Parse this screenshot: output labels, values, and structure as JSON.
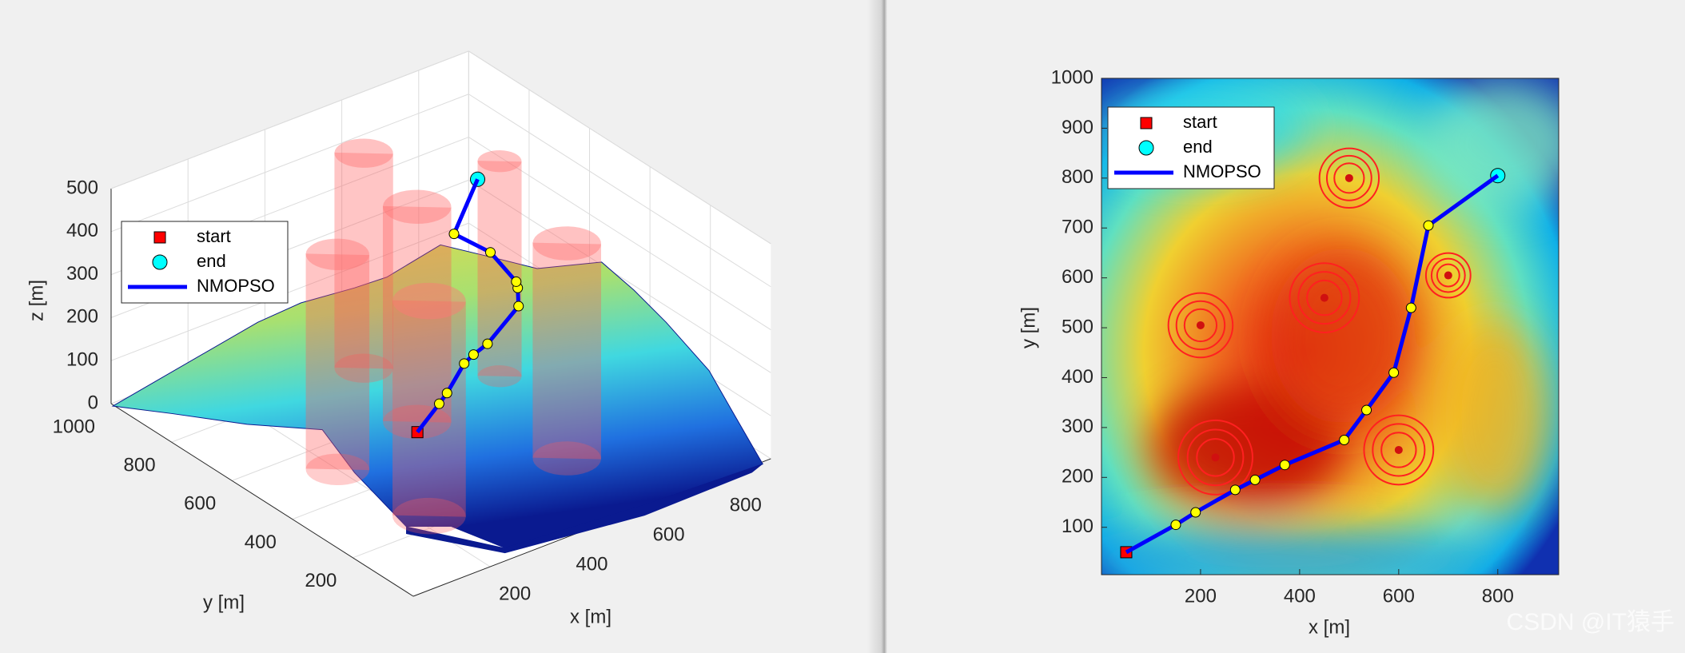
{
  "watermark": "CSDN @IT猿手",
  "chart_data": [
    {
      "type": "line3d",
      "xlabel": "x [m]",
      "ylabel": "y [m]",
      "zlabel": "z [m]",
      "xlim": [
        0,
        930
      ],
      "ylim": [
        0,
        1000
      ],
      "zlim": [
        0,
        500
      ],
      "xticks": [
        200,
        400,
        600,
        800
      ],
      "yticks": [
        200,
        400,
        600,
        800,
        1000
      ],
      "zticks": [
        0,
        100,
        200,
        300,
        400,
        500
      ],
      "grid": true,
      "legend": "upper left",
      "series": [
        {
          "name": "start",
          "color": "#ff0000",
          "marker": "square",
          "x": [
            50
          ],
          "y": [
            50
          ],
          "z": [
            342
          ]
        },
        {
          "name": "end",
          "color": "#00ffff",
          "marker": "circle",
          "x": [
            800
          ],
          "y": [
            805
          ],
          "z": [
            334
          ]
        },
        {
          "name": "NMOPSO",
          "color": "#0000ff",
          "marker_color": "#ffff00",
          "x": [
            50,
            150,
            190,
            270,
            310,
            370,
            490,
            535,
            590,
            625,
            660,
            800
          ],
          "y": [
            50,
            105,
            130,
            175,
            195,
            225,
            275,
            335,
            410,
            540,
            705,
            805
          ],
          "z": [
            342,
            349,
            349,
            370,
            368,
            359,
            383,
            383,
            345,
            343,
            300,
            334
          ]
        }
      ],
      "threats": [
        {
          "x": 500,
          "y": 800,
          "r": 60
        },
        {
          "x": 700,
          "y": 605,
          "r": 45
        },
        {
          "x": 200,
          "y": 505,
          "r": 65
        },
        {
          "x": 450,
          "y": 560,
          "r": 70
        },
        {
          "x": 230,
          "y": 240,
          "r": 75
        },
        {
          "x": 600,
          "y": 255,
          "r": 70
        }
      ]
    },
    {
      "type": "line",
      "xlabel": "x [m]",
      "ylabel": "y [m]",
      "xlim": [
        0,
        923
      ],
      "ylim": [
        5,
        1000
      ],
      "xticks": [
        200,
        400,
        600,
        800
      ],
      "yticks": [
        100,
        200,
        300,
        400,
        500,
        600,
        700,
        800,
        900,
        1000
      ],
      "legend": "upper left",
      "series": [
        {
          "name": "start",
          "color": "#ff0000",
          "marker": "square",
          "x": [
            50
          ],
          "y": [
            50
          ]
        },
        {
          "name": "end",
          "color": "#00ffff",
          "marker": "circle",
          "x": [
            800
          ],
          "y": [
            805
          ]
        },
        {
          "name": "NMOPSO",
          "color": "#0000ff",
          "marker_color": "#ffff00",
          "x": [
            50,
            150,
            190,
            270,
            310,
            370,
            490,
            535,
            590,
            625,
            660,
            800
          ],
          "y": [
            50,
            105,
            130,
            175,
            195,
            225,
            275,
            335,
            410,
            540,
            705,
            805
          ]
        }
      ],
      "threats": [
        {
          "x": 500,
          "y": 800,
          "r": 60
        },
        {
          "x": 700,
          "y": 605,
          "r": 45
        },
        {
          "x": 200,
          "y": 505,
          "r": 65
        },
        {
          "x": 450,
          "y": 560,
          "r": 70
        },
        {
          "x": 230,
          "y": 240,
          "r": 75
        },
        {
          "x": 600,
          "y": 255,
          "r": 70
        }
      ]
    }
  ]
}
